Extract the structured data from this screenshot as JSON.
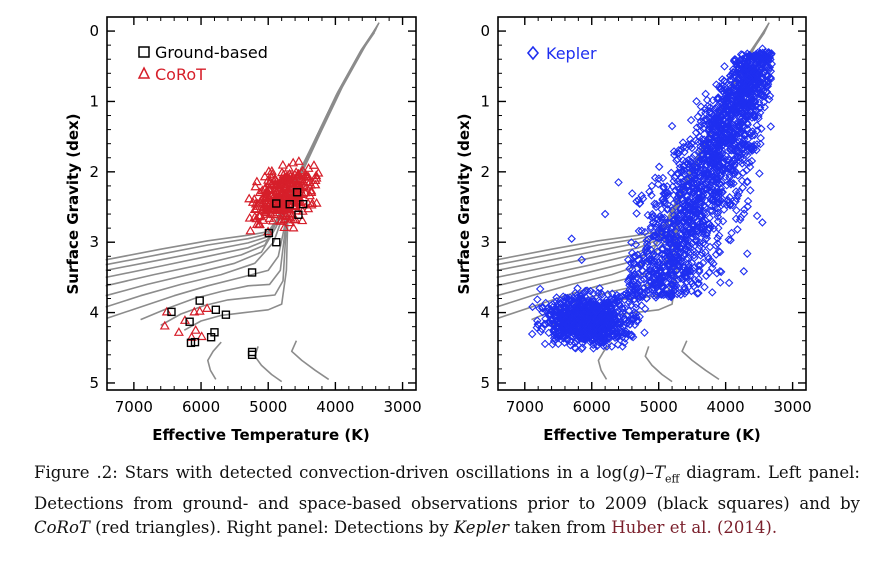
{
  "chart_data": [
    {
      "type": "scatter",
      "panel": "left",
      "xlabel": "Effective Temperature (K)",
      "ylabel": "Surface Gravity (dex)",
      "xlim": [
        7400,
        2800
      ],
      "ylim": [
        5.1,
        -0.2
      ],
      "x_ticks": [
        7000,
        6000,
        5000,
        4000,
        3000
      ],
      "y_ticks": [
        0,
        1,
        2,
        3,
        4,
        5
      ],
      "legend_position": "top-left",
      "series": [
        {
          "name": "Ground-based",
          "marker": "square",
          "color": "#000000",
          "points": [
            [
              6440,
              3.99
            ],
            [
              6170,
              4.13
            ],
            [
              6150,
              4.43
            ],
            [
              6090,
              4.42
            ],
            [
              6020,
              3.83
            ],
            [
              5850,
              4.35
            ],
            [
              5800,
              4.28
            ],
            [
              5780,
              3.96
            ],
            [
              5630,
              4.03
            ],
            [
              5240,
              4.6
            ],
            [
              5240,
              4.56
            ],
            [
              5240,
              3.43
            ],
            [
              4990,
              2.87
            ],
            [
              4880,
              3.0
            ],
            [
              4880,
              2.45
            ],
            [
              4680,
              2.46
            ],
            [
              4570,
              2.29
            ],
            [
              4550,
              2.61
            ],
            [
              4480,
              2.46
            ]
          ]
        },
        {
          "name": "CoRoT",
          "marker": "triangle",
          "color": "#d61f2a",
          "low_gravity_cluster": {
            "teff_range": [
              5300,
              4250
            ],
            "logg_range": [
              1.85,
              2.85
            ],
            "count": 300
          },
          "points": [
            [
              6540,
              4.19
            ],
            [
              6510,
              3.99
            ],
            [
              6330,
              4.28
            ],
            [
              6240,
              4.11
            ],
            [
              6140,
              4.35
            ],
            [
              6100,
              3.99
            ],
            [
              6080,
              4.25
            ],
            [
              6020,
              3.98
            ],
            [
              5990,
              4.34
            ],
            [
              5910,
              3.94
            ]
          ]
        }
      ],
      "evolutionary_tracks": {
        "color": "#8c8c8c",
        "tracks": [
          {
            "pts": [
              [
                7420,
                3.25
              ],
              [
                6600,
                3.1
              ],
              [
                5900,
                2.98
              ],
              [
                5300,
                2.9
              ],
              [
                5000,
                2.85
              ],
              [
                4800,
                2.58
              ],
              [
                4500,
                2.02
              ],
              [
                4200,
                1.4
              ],
              [
                3900,
                0.8
              ],
              [
                3550,
                0.2
              ],
              [
                3350,
                -0.12
              ]
            ]
          },
          {
            "pts": [
              [
                7420,
                3.32
              ],
              [
                6600,
                3.17
              ],
              [
                5900,
                3.04
              ],
              [
                5300,
                2.95
              ],
              [
                5000,
                2.88
              ],
              [
                4820,
                2.6
              ],
              [
                4520,
                2.04
              ],
              [
                4220,
                1.42
              ],
              [
                3920,
                0.82
              ],
              [
                3570,
                0.22
              ],
              [
                3360,
                -0.1
              ]
            ]
          },
          {
            "pts": [
              [
                7420,
                3.4
              ],
              [
                6600,
                3.25
              ],
              [
                5900,
                3.12
              ],
              [
                5300,
                3.01
              ],
              [
                5000,
                2.92
              ],
              [
                4840,
                2.62
              ],
              [
                4540,
                2.06
              ],
              [
                4240,
                1.44
              ],
              [
                3940,
                0.84
              ],
              [
                3590,
                0.24
              ],
              [
                3370,
                -0.08
              ]
            ]
          },
          {
            "pts": [
              [
                7420,
                3.5
              ],
              [
                6600,
                3.34
              ],
              [
                5900,
                3.2
              ],
              [
                5300,
                3.08
              ],
              [
                5000,
                2.96
              ],
              [
                4860,
                2.64
              ],
              [
                4560,
                2.08
              ],
              [
                4260,
                1.46
              ],
              [
                3960,
                0.86
              ],
              [
                3610,
                0.26
              ],
              [
                3380,
                -0.06
              ]
            ]
          },
          {
            "pts": [
              [
                7420,
                3.62
              ],
              [
                6700,
                3.46
              ],
              [
                6000,
                3.32
              ],
              [
                5400,
                3.18
              ],
              [
                5050,
                3.04
              ],
              [
                4870,
                2.7
              ],
              [
                4570,
                2.1
              ],
              [
                4270,
                1.48
              ],
              [
                3970,
                0.88
              ],
              [
                3620,
                0.28
              ],
              [
                3390,
                -0.04
              ]
            ]
          },
          {
            "pts": [
              [
                7420,
                3.76
              ],
              [
                6800,
                3.6
              ],
              [
                6100,
                3.44
              ],
              [
                5500,
                3.3
              ],
              [
                5100,
                3.14
              ],
              [
                4880,
                2.78
              ],
              [
                4580,
                2.12
              ],
              [
                4280,
                1.5
              ],
              [
                3980,
                0.9
              ],
              [
                3630,
                0.3
              ],
              [
                3400,
                -0.02
              ]
            ]
          },
          {
            "pts": [
              [
                7420,
                3.92
              ],
              [
                6900,
                3.76
              ],
              [
                6300,
                3.6
              ],
              [
                5700,
                3.46
              ],
              [
                5200,
                3.3
              ],
              [
                4920,
                3.0
              ],
              [
                4600,
                2.14
              ],
              [
                4290,
                1.52
              ],
              [
                3990,
                0.92
              ],
              [
                3640,
                0.32
              ],
              [
                3410,
                0.0
              ]
            ]
          },
          {
            "pts": [
              [
                7400,
                4.08
              ],
              [
                6900,
                3.92
              ],
              [
                6400,
                3.76
              ],
              [
                5900,
                3.62
              ],
              [
                5400,
                3.5
              ],
              [
                5000,
                3.4
              ],
              [
                4850,
                3.2
              ],
              [
                4620,
                2.16
              ],
              [
                4300,
                1.54
              ],
              [
                4000,
                0.94
              ],
              [
                3650,
                0.34
              ],
              [
                3420,
                0.02
              ]
            ]
          },
          {
            "pts": [
              [
                6900,
                4.1
              ],
              [
                6500,
                3.94
              ],
              [
                6100,
                3.8
              ],
              [
                5700,
                3.7
              ],
              [
                5300,
                3.62
              ],
              [
                4980,
                3.6
              ],
              [
                4820,
                3.4
              ],
              [
                4680,
                2.3
              ],
              [
                4640,
                2.18
              ]
            ]
          },
          {
            "pts": [
              [
                6600,
                4.18
              ],
              [
                6300,
                4.02
              ],
              [
                5950,
                3.9
              ],
              [
                5600,
                3.82
              ],
              [
                5200,
                3.78
              ],
              [
                4900,
                3.75
              ],
              [
                4780,
                3.55
              ],
              [
                4720,
                2.6
              ],
              [
                4670,
                2.2
              ]
            ]
          },
          {
            "pts": [
              [
                6250,
                4.25
              ],
              [
                6000,
                4.12
              ],
              [
                5700,
                4.04
              ],
              [
                5350,
                4.0
              ],
              [
                5000,
                3.96
              ],
              [
                4800,
                3.88
              ],
              [
                4730,
                3.4
              ],
              [
                4710,
                2.7
              ]
            ]
          },
          {
            "pts": [
              [
                5700,
                4.42
              ],
              [
                5820,
                4.55
              ],
              [
                5900,
                4.68
              ],
              [
                5860,
                4.82
              ],
              [
                5780,
                4.95
              ]
            ]
          },
          {
            "pts": [
              [
                5150,
                4.48
              ],
              [
                5200,
                4.62
              ],
              [
                5100,
                4.75
              ],
              [
                4950,
                4.88
              ],
              [
                4800,
                4.98
              ]
            ]
          },
          {
            "pts": [
              [
                4580,
                4.4
              ],
              [
                4650,
                4.55
              ],
              [
                4500,
                4.68
              ],
              [
                4300,
                4.82
              ],
              [
                4100,
                4.95
              ]
            ]
          }
        ]
      }
    },
    {
      "type": "scatter",
      "panel": "right",
      "xlabel": "Effective Temperature (K)",
      "ylabel": "Surface Gravity (dex)",
      "xlim": [
        7400,
        2800
      ],
      "ylim": [
        5.1,
        -0.2
      ],
      "x_ticks": [
        7000,
        6000,
        5000,
        4000,
        3000
      ],
      "y_ticks": [
        0,
        1,
        2,
        3,
        4,
        5
      ],
      "legend_position": "top-left",
      "series": [
        {
          "name": "Kepler",
          "marker": "diamond",
          "color": "#1f2ff0",
          "density_regions": [
            {
              "description_teff_range": [
                6900,
                5200
              ],
              "logg_range": [
                3.65,
                4.55
              ],
              "count": 900
            },
            {
              "description_teff_range": [
                5500,
                3300
              ],
              "logg_range": [
                0.2,
                3.9
              ],
              "count": 1800
            }
          ],
          "sample_points": [
            [
              6300,
              2.95
            ],
            [
              6150,
              3.25
            ],
            [
              5800,
              2.6
            ],
            [
              5600,
              2.15
            ],
            [
              4800,
              1.35
            ],
            [
              4300,
              1.1
            ],
            [
              4050,
              0.85
            ],
            [
              3700,
              0.4
            ],
            [
              3450,
              0.25
            ],
            [
              5300,
              2.4
            ]
          ]
        }
      ],
      "evolutionary_tracks": {
        "same_as_left_panel": true
      }
    }
  ],
  "legend": {
    "ground_based": "Ground-based",
    "corot": "CoRoT",
    "kepler": "Kepler"
  },
  "axes_text": {
    "xlabel": "Effective Temperature (K)",
    "ylabel": "Surface Gravity (dex)"
  },
  "caption": {
    "part1": "Figure .2: Stars with detected convection-driven oscillations in a log(",
    "g": "g",
    "part2": ")–",
    "teff_T": "T",
    "teff_sub": "eff",
    "part3": " diagram. Left panel: Detections from ground- and space-based observations prior to 2009 (black squares) and by ",
    "corot": "CoRoT",
    "part4": " (red triangles). Right panel: Detections by ",
    "kepler": "Kepler",
    "part5": " taken from ",
    "cite": "Huber et al.",
    "part6": " (2014)."
  }
}
